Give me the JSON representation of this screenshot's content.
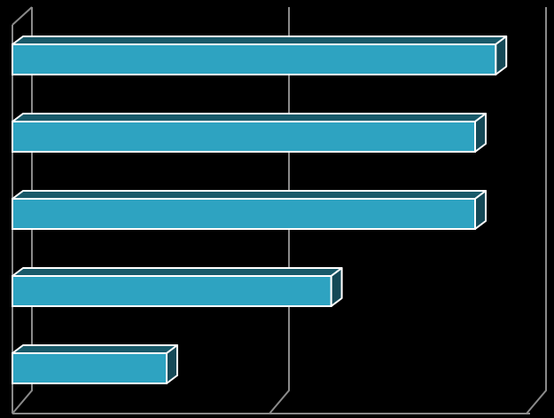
{
  "chart_data": {
    "type": "bar",
    "orientation": "horizontal",
    "categories": [
      null,
      null,
      null,
      null,
      null
    ],
    "values": [
      1.88,
      1.8,
      1.8,
      1.24,
      0.6
    ],
    "color": "#2ea3c1",
    "xlim": [
      0,
      2
    ],
    "xticks": [
      0,
      1,
      2
    ],
    "grid": true
  }
}
